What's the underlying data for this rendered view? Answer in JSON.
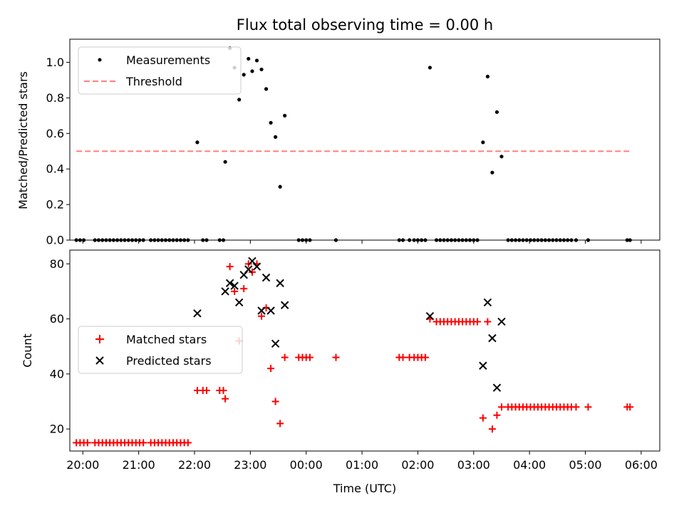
{
  "chart_data": [
    {
      "type": "scatter",
      "title": "Flux total observing time = 0.00 h",
      "xlabel": "",
      "ylabel": "Matched/Predicted stars",
      "xlim": [
        "19:46",
        "06:20"
      ],
      "ylim": [
        0,
        1.13
      ],
      "yticks": [
        "0.0",
        "0.2",
        "0.4",
        "0.6",
        "0.8",
        "1.0"
      ],
      "legend": {
        "placement": "top-left",
        "entries": [
          "Measurements",
          "Threshold"
        ]
      },
      "colors": {
        "measurements": "#000000",
        "threshold": "#ff8080"
      },
      "series": [
        {
          "name": "Measurements",
          "points": [
            [
              "19:53",
              0
            ],
            [
              "19:57",
              0
            ],
            [
              "20:01",
              0
            ],
            [
              "20:13",
              0
            ],
            [
              "20:17",
              0
            ],
            [
              "20:21",
              0
            ],
            [
              "20:25",
              0
            ],
            [
              "20:29",
              0
            ],
            [
              "20:33",
              0
            ],
            [
              "20:37",
              0
            ],
            [
              "20:41",
              0
            ],
            [
              "20:45",
              0
            ],
            [
              "20:49",
              0
            ],
            [
              "20:53",
              0
            ],
            [
              "20:57",
              0
            ],
            [
              "21:01",
              0
            ],
            [
              "21:05",
              0
            ],
            [
              "21:13",
              0
            ],
            [
              "21:17",
              0
            ],
            [
              "21:21",
              0
            ],
            [
              "21:25",
              0
            ],
            [
              "21:29",
              0
            ],
            [
              "21:33",
              0
            ],
            [
              "21:37",
              0
            ],
            [
              "21:41",
              0
            ],
            [
              "21:45",
              0
            ],
            [
              "21:49",
              0
            ],
            [
              "21:53",
              0
            ],
            [
              "22:03",
              0.55
            ],
            [
              "22:09",
              0
            ],
            [
              "22:13",
              0
            ],
            [
              "22:27",
              0
            ],
            [
              "22:31",
              0
            ],
            [
              "22:33",
              0.44
            ],
            [
              "22:38",
              1.08
            ],
            [
              "22:43",
              0.97
            ],
            [
              "22:48",
              0.79
            ],
            [
              "22:53",
              0.93
            ],
            [
              "22:58",
              1.02
            ],
            [
              "23:02",
              0.95
            ],
            [
              "23:07",
              1.01
            ],
            [
              "23:12",
              0.96
            ],
            [
              "23:17",
              0.85
            ],
            [
              "23:22",
              0.66
            ],
            [
              "23:27",
              0.58
            ],
            [
              "23:32",
              0.3
            ],
            [
              "23:37",
              0.7
            ],
            [
              "23:52",
              0
            ],
            [
              "23:56",
              0
            ],
            [
              "00:00",
              0
            ],
            [
              "00:04",
              0
            ],
            [
              "00:32",
              0
            ],
            [
              "01:40",
              0
            ],
            [
              "01:44",
              0
            ],
            [
              "01:51",
              0
            ],
            [
              "01:56",
              0
            ],
            [
              "02:00",
              0
            ],
            [
              "02:04",
              0
            ],
            [
              "02:08",
              0
            ],
            [
              "02:13",
              0.97
            ],
            [
              "02:20",
              0
            ],
            [
              "02:24",
              0
            ],
            [
              "02:28",
              0
            ],
            [
              "02:32",
              0
            ],
            [
              "02:36",
              0
            ],
            [
              "02:40",
              0
            ],
            [
              "02:44",
              0
            ],
            [
              "02:48",
              0
            ],
            [
              "02:52",
              0
            ],
            [
              "02:56",
              0
            ],
            [
              "03:00",
              0
            ],
            [
              "03:04",
              0
            ],
            [
              "03:10",
              0.55
            ],
            [
              "03:15",
              0.92
            ],
            [
              "03:20",
              0.38
            ],
            [
              "03:25",
              0.72
            ],
            [
              "03:30",
              0.47
            ],
            [
              "03:37",
              0
            ],
            [
              "03:41",
              0
            ],
            [
              "03:45",
              0
            ],
            [
              "03:49",
              0
            ],
            [
              "03:53",
              0
            ],
            [
              "03:57",
              0
            ],
            [
              "04:01",
              0
            ],
            [
              "04:05",
              0
            ],
            [
              "04:09",
              0
            ],
            [
              "04:13",
              0
            ],
            [
              "04:17",
              0
            ],
            [
              "04:21",
              0
            ],
            [
              "04:25",
              0
            ],
            [
              "04:29",
              0
            ],
            [
              "04:33",
              0
            ],
            [
              "04:37",
              0
            ],
            [
              "04:41",
              0
            ],
            [
              "04:45",
              0
            ],
            [
              "04:50",
              0
            ],
            [
              "05:03",
              0
            ],
            [
              "05:45",
              0
            ],
            [
              "05:48",
              0
            ]
          ]
        },
        {
          "name": "Threshold",
          "points": [
            [
              "19:53",
              0.5
            ],
            [
              "05:48",
              0.5
            ]
          ]
        }
      ]
    },
    {
      "type": "scatter",
      "title": "",
      "xlabel": "Time (UTC)",
      "ylabel": "Count",
      "xlim": [
        "19:46",
        "06:20"
      ],
      "ylim": [
        12,
        85
      ],
      "yticks": [
        "20",
        "40",
        "60",
        "80"
      ],
      "xticks": [
        "20:00",
        "21:00",
        "22:00",
        "23:00",
        "00:00",
        "01:00",
        "02:00",
        "03:00",
        "04:00",
        "05:00",
        "06:00"
      ],
      "legend": {
        "placement": "center-left",
        "entries": [
          "Matched stars",
          "Predicted stars"
        ]
      },
      "colors": {
        "matched": "#ff0000",
        "predicted": "#000000"
      },
      "series": [
        {
          "name": "Matched stars",
          "points": [
            [
              "19:53",
              15
            ],
            [
              "19:57",
              15
            ],
            [
              "20:01",
              15
            ],
            [
              "20:05",
              15
            ],
            [
              "20:13",
              15
            ],
            [
              "20:17",
              15
            ],
            [
              "20:21",
              15
            ],
            [
              "20:25",
              15
            ],
            [
              "20:29",
              15
            ],
            [
              "20:33",
              15
            ],
            [
              "20:37",
              15
            ],
            [
              "20:41",
              15
            ],
            [
              "20:45",
              15
            ],
            [
              "20:49",
              15
            ],
            [
              "20:53",
              15
            ],
            [
              "20:57",
              15
            ],
            [
              "21:01",
              15
            ],
            [
              "21:05",
              15
            ],
            [
              "21:13",
              15
            ],
            [
              "21:17",
              15
            ],
            [
              "21:21",
              15
            ],
            [
              "21:25",
              15
            ],
            [
              "21:29",
              15
            ],
            [
              "21:33",
              15
            ],
            [
              "21:37",
              15
            ],
            [
              "21:41",
              15
            ],
            [
              "21:45",
              15
            ],
            [
              "21:49",
              15
            ],
            [
              "21:53",
              15
            ],
            [
              "22:03",
              34
            ],
            [
              "22:09",
              34
            ],
            [
              "22:13",
              34
            ],
            [
              "22:27",
              34
            ],
            [
              "22:31",
              34
            ],
            [
              "22:33",
              31
            ],
            [
              "22:38",
              79
            ],
            [
              "22:43",
              70
            ],
            [
              "22:48",
              52
            ],
            [
              "22:53",
              71
            ],
            [
              "22:58",
              80
            ],
            [
              "23:02",
              77
            ],
            [
              "23:07",
              80
            ],
            [
              "23:12",
              61
            ],
            [
              "23:17",
              64
            ],
            [
              "23:22",
              42
            ],
            [
              "23:27",
              30
            ],
            [
              "23:32",
              22
            ],
            [
              "23:37",
              46
            ],
            [
              "23:52",
              46
            ],
            [
              "23:56",
              46
            ],
            [
              "00:00",
              46
            ],
            [
              "00:04",
              46
            ],
            [
              "00:32",
              46
            ],
            [
              "01:40",
              46
            ],
            [
              "01:44",
              46
            ],
            [
              "01:51",
              46
            ],
            [
              "01:56",
              46
            ],
            [
              "02:00",
              46
            ],
            [
              "02:04",
              46
            ],
            [
              "02:08",
              46
            ],
            [
              "02:13",
              60
            ],
            [
              "02:20",
              59
            ],
            [
              "02:24",
              59
            ],
            [
              "02:28",
              59
            ],
            [
              "02:32",
              59
            ],
            [
              "02:36",
              59
            ],
            [
              "02:40",
              59
            ],
            [
              "02:44",
              59
            ],
            [
              "02:48",
              59
            ],
            [
              "02:52",
              59
            ],
            [
              "02:56",
              59
            ],
            [
              "03:00",
              59
            ],
            [
              "03:04",
              59
            ],
            [
              "03:10",
              24
            ],
            [
              "03:15",
              59
            ],
            [
              "03:20",
              20
            ],
            [
              "03:25",
              25
            ],
            [
              "03:30",
              28
            ],
            [
              "03:37",
              28
            ],
            [
              "03:41",
              28
            ],
            [
              "03:45",
              28
            ],
            [
              "03:49",
              28
            ],
            [
              "03:53",
              28
            ],
            [
              "03:57",
              28
            ],
            [
              "04:01",
              28
            ],
            [
              "04:05",
              28
            ],
            [
              "04:09",
              28
            ],
            [
              "04:13",
              28
            ],
            [
              "04:17",
              28
            ],
            [
              "04:21",
              28
            ],
            [
              "04:25",
              28
            ],
            [
              "04:29",
              28
            ],
            [
              "04:33",
              28
            ],
            [
              "04:37",
              28
            ],
            [
              "04:41",
              28
            ],
            [
              "04:45",
              28
            ],
            [
              "04:50",
              28
            ],
            [
              "05:03",
              28
            ],
            [
              "05:45",
              28
            ],
            [
              "05:48",
              28
            ]
          ]
        },
        {
          "name": "Predicted stars",
          "points": [
            [
              "22:03",
              62
            ],
            [
              "22:33",
              70
            ],
            [
              "22:38",
              73
            ],
            [
              "22:43",
              72
            ],
            [
              "22:48",
              66
            ],
            [
              "22:53",
              76
            ],
            [
              "22:58",
              78
            ],
            [
              "23:02",
              81
            ],
            [
              "23:07",
              79
            ],
            [
              "23:12",
              63
            ],
            [
              "23:17",
              75
            ],
            [
              "23:22",
              63
            ],
            [
              "23:27",
              51
            ],
            [
              "23:32",
              73
            ],
            [
              "23:37",
              65
            ],
            [
              "02:13",
              61
            ],
            [
              "03:10",
              43
            ],
            [
              "03:15",
              66
            ],
            [
              "03:20",
              53
            ],
            [
              "03:25",
              35
            ],
            [
              "03:30",
              59
            ]
          ]
        }
      ]
    }
  ]
}
